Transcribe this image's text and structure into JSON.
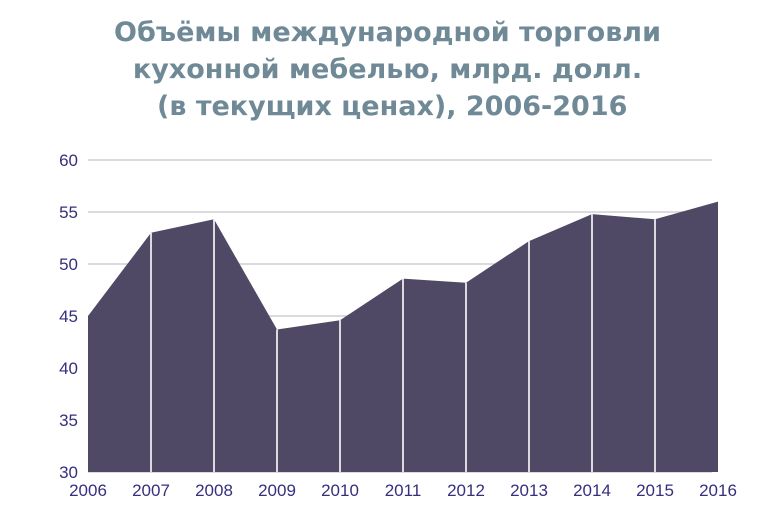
{
  "title_lines": [
    "Объёмы международной торговли",
    "кухонной мебелью, млрд. долл.",
    " (в текущих ценах), 2006-2016"
  ],
  "colors": {
    "area": "#4f4966",
    "grid": "#cfcfd4",
    "title": "#6f8a96",
    "tick": "#352f7e",
    "separator": "#ffffff"
  },
  "chart_data": {
    "type": "area",
    "title": "Объёмы международной торговли кухонной мебелью, млрд. долл. (в текущих ценах), 2006-2016",
    "xlabel": "",
    "ylabel": "",
    "x": [
      "2006",
      "2007",
      "2008",
      "2009",
      "2010",
      "2011",
      "2012",
      "2013",
      "2014",
      "2015",
      "2016"
    ],
    "values": [
      45.0,
      53.0,
      54.3,
      43.7,
      44.6,
      48.6,
      48.2,
      52.2,
      54.8,
      54.3,
      56.0
    ],
    "ylim": [
      30,
      60
    ],
    "y_ticks": [
      "60",
      "55",
      "50",
      "45",
      "40",
      "35",
      "30"
    ],
    "grid": true,
    "legend": "none"
  }
}
